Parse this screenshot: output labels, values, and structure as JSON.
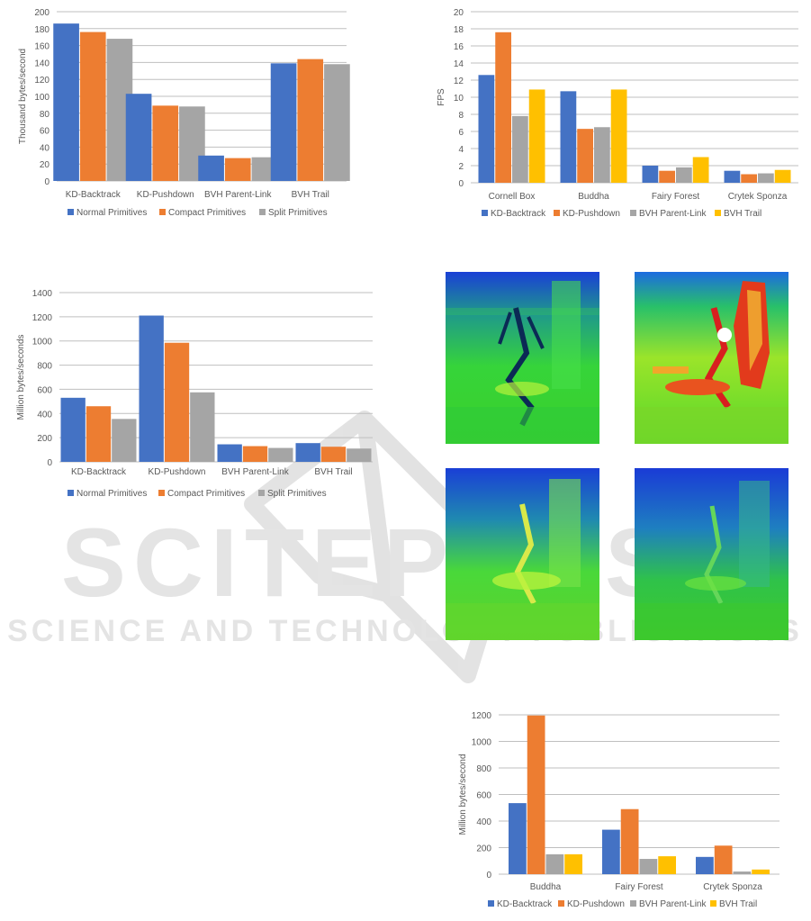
{
  "watermark": {
    "main": "SCITEPRESS",
    "sub": "SCIENCE AND TECHNOLOGY PUBLICATIONS"
  },
  "colors": {
    "blue": "#4472C4",
    "orange": "#ED7D31",
    "gray": "#A5A5A5",
    "yellow": "#FFC000"
  },
  "chart_data": [
    {
      "id": "c1",
      "type": "bar",
      "title": "",
      "xlabel": "",
      "ylabel": "Thousand bytes/second",
      "ylim": [
        0,
        200
      ],
      "yticks": [
        0,
        20,
        40,
        60,
        80,
        100,
        120,
        140,
        160,
        180,
        200
      ],
      "categories": [
        "KD-Backtrack",
        "KD-Pushdown",
        "BVH Parent-Link",
        "BVH Trail"
      ],
      "series": [
        {
          "name": "Normal Primitives",
          "color": "#4472C4",
          "values": [
            186,
            103,
            30,
            139
          ]
        },
        {
          "name": "Compact Primitives",
          "color": "#ED7D31",
          "values": [
            176,
            89,
            27,
            144
          ]
        },
        {
          "name": "Split Primitives",
          "color": "#A5A5A5",
          "values": [
            168,
            88,
            28,
            138
          ]
        }
      ],
      "grid": true,
      "legend": "bottom"
    },
    {
      "id": "c2",
      "type": "bar",
      "title": "",
      "xlabel": "",
      "ylabel": "FPS",
      "ylim": [
        0,
        20
      ],
      "yticks": [
        0,
        2,
        4,
        6,
        8,
        10,
        12,
        14,
        16,
        18,
        20
      ],
      "categories": [
        "Cornell Box",
        "Buddha",
        "Fairy Forest",
        "Crytek Sponza"
      ],
      "series": [
        {
          "name": "KD-Backtrack",
          "color": "#4472C4",
          "values": [
            12.6,
            10.7,
            2.0,
            1.4
          ]
        },
        {
          "name": "KD-Pushdown",
          "color": "#ED7D31",
          "values": [
            17.6,
            6.3,
            1.4,
            1.0
          ]
        },
        {
          "name": "BVH Parent-Link",
          "color": "#A5A5A5",
          "values": [
            7.8,
            6.5,
            1.8,
            1.1
          ]
        },
        {
          "name": "BVH Trail",
          "color": "#FFC000",
          "values": [
            10.9,
            10.9,
            3.0,
            1.5
          ]
        }
      ],
      "grid": true,
      "legend": "bottom"
    },
    {
      "id": "c3",
      "type": "bar",
      "title": "",
      "xlabel": "",
      "ylabel": "Million bytes/seconds",
      "ylim": [
        0,
        1400
      ],
      "yticks": [
        0,
        200,
        400,
        600,
        800,
        1000,
        1200,
        1400
      ],
      "categories": [
        "KD-Backtrack",
        "KD-Pushdown",
        "BVH Parent-Link",
        "BVH Trail"
      ],
      "series": [
        {
          "name": "Normal Primitives",
          "color": "#4472C4",
          "values": [
            530,
            1210,
            145,
            155
          ]
        },
        {
          "name": "Compact Primitives",
          "color": "#ED7D31",
          "values": [
            460,
            985,
            130,
            125
          ]
        },
        {
          "name": "Split Primitives",
          "color": "#A5A5A5",
          "values": [
            355,
            575,
            115,
            110
          ]
        }
      ],
      "grid": true,
      "legend": "bottom"
    },
    {
      "id": "c4",
      "type": "bar",
      "title": "",
      "xlabel": "",
      "ylabel": "Million bytes/second",
      "ylim": [
        0,
        1200
      ],
      "yticks": [
        0,
        200,
        400,
        600,
        800,
        1000,
        1200
      ],
      "categories": [
        "Buddha",
        "Fairy Forest",
        "Crytek Sponza"
      ],
      "series": [
        {
          "name": "KD-Backtrack",
          "color": "#4472C4",
          "values": [
            535,
            335,
            130
          ]
        },
        {
          "name": "KD-Pushdown",
          "color": "#ED7D31",
          "values": [
            1195,
            490,
            215
          ]
        },
        {
          "name": "BVH Parent-Link",
          "color": "#A5A5A5",
          "values": [
            150,
            115,
            20
          ]
        },
        {
          "name": "BVH Trail",
          "color": "#FFC000",
          "values": [
            150,
            135,
            35
          ]
        }
      ],
      "grid": true,
      "legend": "bottom"
    }
  ],
  "heatmaps": [
    {
      "id": "h1",
      "intensity": "low"
    },
    {
      "id": "h2",
      "intensity": "high"
    },
    {
      "id": "h3",
      "intensity": "medium"
    },
    {
      "id": "h4",
      "intensity": "low"
    }
  ]
}
